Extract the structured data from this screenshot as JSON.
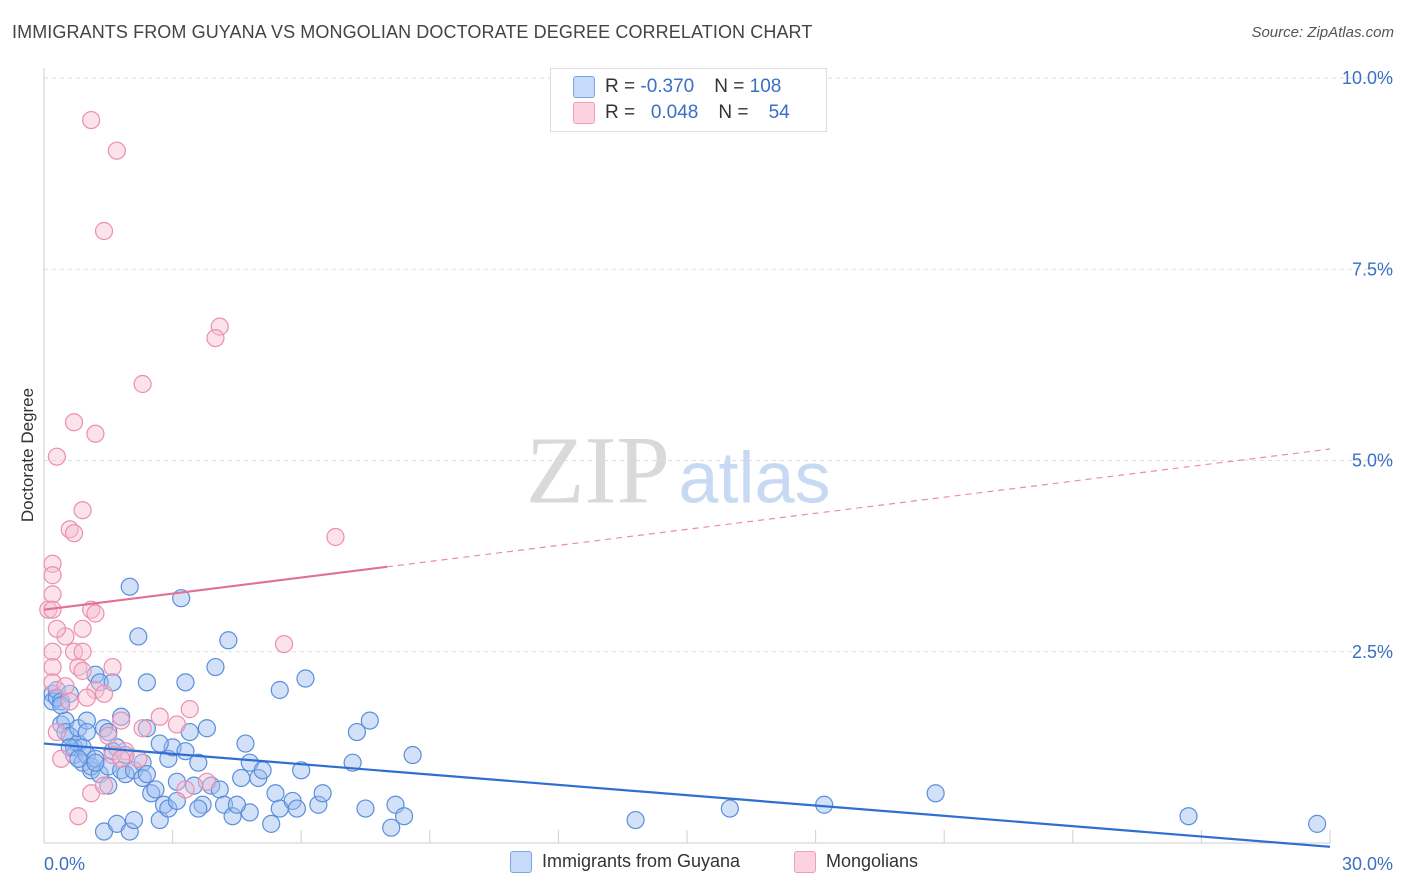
{
  "chart_data": {
    "type": "scatter",
    "title": "IMMIGRANTS FROM GUYANA VS MONGOLIAN DOCTORATE DEGREE CORRELATION CHART",
    "source": "Source: ZipAtlas.com",
    "xlabel": "",
    "ylabel": "Doctorate Degree",
    "xlim": [
      0,
      30
    ],
    "ylim": [
      0,
      10
    ],
    "x_tick_labels": [
      "0.0%",
      "30.0%"
    ],
    "y_tick_labels": [
      "2.5%",
      "5.0%",
      "7.5%",
      "10.0%"
    ],
    "y_ticks": [
      2.5,
      5.0,
      7.5,
      10.0
    ],
    "watermark": {
      "zip": "ZIP",
      "atlas": "atlas"
    },
    "legend": [
      {
        "r_label": "R = ",
        "r_value": "-0.370",
        "n_label": "N = ",
        "n_value": "108"
      },
      {
        "r_label": "R = ",
        "r_value": "0.048",
        "n_label": "N = ",
        "n_value": "54"
      }
    ],
    "series": [
      {
        "name": "Immigrants from Guyana",
        "color": "#9bbcf0",
        "edge": "#5a8fdc",
        "trend": {
          "x0": 0,
          "y0": 1.3,
          "x1": 30,
          "y1": -0.05,
          "solid_until": 30,
          "color": "#2f6fd1"
        },
        "points": [
          [
            0.2,
            1.95
          ],
          [
            0.2,
            1.85
          ],
          [
            0.3,
            1.9
          ],
          [
            0.3,
            2.0
          ],
          [
            0.4,
            1.55
          ],
          [
            0.4,
            1.85
          ],
          [
            0.5,
            1.6
          ],
          [
            0.5,
            1.45
          ],
          [
            0.6,
            1.4
          ],
          [
            0.6,
            1.95
          ],
          [
            0.7,
            1.25
          ],
          [
            0.7,
            1.15
          ],
          [
            0.8,
            1.3
          ],
          [
            0.8,
            1.5
          ],
          [
            0.9,
            1.25
          ],
          [
            0.9,
            1.05
          ],
          [
            1.0,
            1.6
          ],
          [
            1.0,
            1.15
          ],
          [
            1.1,
            0.95
          ],
          [
            1.1,
            1.0
          ],
          [
            1.2,
            2.2
          ],
          [
            1.2,
            1.1
          ],
          [
            1.3,
            2.1
          ],
          [
            1.3,
            0.9
          ],
          [
            1.4,
            1.5
          ],
          [
            1.4,
            0.15
          ],
          [
            1.5,
            0.75
          ],
          [
            1.5,
            1.0
          ],
          [
            1.6,
            2.1
          ],
          [
            1.6,
            1.2
          ],
          [
            1.7,
            1.25
          ],
          [
            1.7,
            0.25
          ],
          [
            1.8,
            1.65
          ],
          [
            1.8,
            0.95
          ],
          [
            1.9,
            1.15
          ],
          [
            1.9,
            0.9
          ],
          [
            2.0,
            3.35
          ],
          [
            2.0,
            0.15
          ],
          [
            2.1,
            0.95
          ],
          [
            2.1,
            0.3
          ],
          [
            2.2,
            2.7
          ],
          [
            2.3,
            1.05
          ],
          [
            2.3,
            0.85
          ],
          [
            2.4,
            1.5
          ],
          [
            2.4,
            2.1
          ],
          [
            2.5,
            0.65
          ],
          [
            2.6,
            0.7
          ],
          [
            2.7,
            0.3
          ],
          [
            2.8,
            0.5
          ],
          [
            2.9,
            0.45
          ],
          [
            2.9,
            1.1
          ],
          [
            3.0,
            1.25
          ],
          [
            3.1,
            0.55
          ],
          [
            3.1,
            0.8
          ],
          [
            3.2,
            3.2
          ],
          [
            3.3,
            2.1
          ],
          [
            3.3,
            1.2
          ],
          [
            3.4,
            1.45
          ],
          [
            3.5,
            0.75
          ],
          [
            3.6,
            1.05
          ],
          [
            3.7,
            0.5
          ],
          [
            3.8,
            1.5
          ],
          [
            3.9,
            0.75
          ],
          [
            4.0,
            2.3
          ],
          [
            4.1,
            0.7
          ],
          [
            4.2,
            0.5
          ],
          [
            4.3,
            2.65
          ],
          [
            4.4,
            0.35
          ],
          [
            4.6,
            0.85
          ],
          [
            4.7,
            1.3
          ],
          [
            4.8,
            1.05
          ],
          [
            4.8,
            0.4
          ],
          [
            5.0,
            0.85
          ],
          [
            5.1,
            0.95
          ],
          [
            5.3,
            0.25
          ],
          [
            5.4,
            0.65
          ],
          [
            5.5,
            0.45
          ],
          [
            5.5,
            2.0
          ],
          [
            5.8,
            0.55
          ],
          [
            6.0,
            0.95
          ],
          [
            6.1,
            2.15
          ],
          [
            6.4,
            0.5
          ],
          [
            6.5,
            0.65
          ],
          [
            7.2,
            1.05
          ],
          [
            7.3,
            1.45
          ],
          [
            7.5,
            0.45
          ],
          [
            7.6,
            1.6
          ],
          [
            8.1,
            0.2
          ],
          [
            8.2,
            0.5
          ],
          [
            8.4,
            0.35
          ],
          [
            8.6,
            1.15
          ],
          [
            13.8,
            0.3
          ],
          [
            16.0,
            0.45
          ],
          [
            18.2,
            0.5
          ],
          [
            20.8,
            0.65
          ],
          [
            26.7,
            0.35
          ],
          [
            29.7,
            0.25
          ],
          [
            0.4,
            1.8
          ],
          [
            1.0,
            1.45
          ],
          [
            2.7,
            1.3
          ],
          [
            0.6,
            1.25
          ],
          [
            1.5,
            1.45
          ],
          [
            3.6,
            0.45
          ],
          [
            4.5,
            0.5
          ],
          [
            0.8,
            1.1
          ],
          [
            2.4,
            0.9
          ],
          [
            1.2,
            1.05
          ],
          [
            5.9,
            0.45
          ]
        ]
      },
      {
        "name": "Mongolians",
        "color": "#f7bfd2",
        "edge": "#ea8fb0",
        "trend": {
          "x0": 0,
          "y0": 3.05,
          "x1": 30,
          "y1": 5.15,
          "solid_until": 8.0,
          "color": "#e26f98"
        },
        "points": [
          [
            1.1,
            9.45
          ],
          [
            1.7,
            9.05
          ],
          [
            1.4,
            8.0
          ],
          [
            4.1,
            6.75
          ],
          [
            4.0,
            6.6
          ],
          [
            2.3,
            6.0
          ],
          [
            0.7,
            5.5
          ],
          [
            1.2,
            5.35
          ],
          [
            0.3,
            5.05
          ],
          [
            0.9,
            4.35
          ],
          [
            0.6,
            4.1
          ],
          [
            0.7,
            4.05
          ],
          [
            6.8,
            4.0
          ],
          [
            0.2,
            3.65
          ],
          [
            0.2,
            3.5
          ],
          [
            0.2,
            3.25
          ],
          [
            0.1,
            3.05
          ],
          [
            0.2,
            3.05
          ],
          [
            0.5,
            2.7
          ],
          [
            0.3,
            2.8
          ],
          [
            0.9,
            2.8
          ],
          [
            1.1,
            3.05
          ],
          [
            1.2,
            3.0
          ],
          [
            0.2,
            2.5
          ],
          [
            0.7,
            2.5
          ],
          [
            0.9,
            2.5
          ],
          [
            0.2,
            2.3
          ],
          [
            0.8,
            2.3
          ],
          [
            1.6,
            2.3
          ],
          [
            0.9,
            2.25
          ],
          [
            5.6,
            2.6
          ],
          [
            0.2,
            2.1
          ],
          [
            0.5,
            2.05
          ],
          [
            1.2,
            2.0
          ],
          [
            1.4,
            1.95
          ],
          [
            1.0,
            1.9
          ],
          [
            3.4,
            1.75
          ],
          [
            0.6,
            1.85
          ],
          [
            2.7,
            1.65
          ],
          [
            1.8,
            1.6
          ],
          [
            3.1,
            1.55
          ],
          [
            2.3,
            1.5
          ],
          [
            1.5,
            1.4
          ],
          [
            1.9,
            1.2
          ],
          [
            0.4,
            1.1
          ],
          [
            2.2,
            1.1
          ],
          [
            1.6,
            1.15
          ],
          [
            1.8,
            1.1
          ],
          [
            3.8,
            0.8
          ],
          [
            3.3,
            0.7
          ],
          [
            1.1,
            0.65
          ],
          [
            0.8,
            0.35
          ],
          [
            1.4,
            0.75
          ],
          [
            0.3,
            1.45
          ]
        ]
      }
    ]
  }
}
